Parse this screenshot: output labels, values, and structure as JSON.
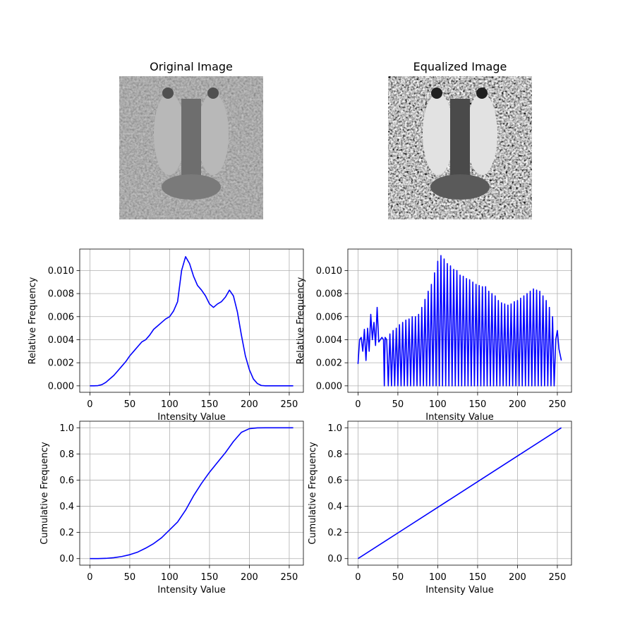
{
  "chart_data": [
    {
      "type": "image",
      "title": "Original Image"
    },
    {
      "type": "image",
      "title": "Equalized Image"
    },
    {
      "type": "line",
      "xlabel": "Intensity Value",
      "ylabel": "Relative Frequency",
      "color": "#0000ff",
      "grid": true,
      "xlim": [
        -12.75,
        267.75
      ],
      "ylim": [
        -0.00056,
        0.01186
      ],
      "xticks": [
        0,
        50,
        100,
        150,
        200,
        250
      ],
      "yticks": [
        {
          "value": 0,
          "label": "0.000"
        },
        {
          "value": 0.002,
          "label": "0.002"
        },
        {
          "value": 0.004,
          "label": "0.004"
        },
        {
          "value": 0.006,
          "label": "0.006"
        },
        {
          "value": 0.008,
          "label": "0.008"
        },
        {
          "value": 0.01,
          "label": "0.010"
        }
      ],
      "x": [
        0,
        5,
        10,
        15,
        20,
        25,
        30,
        35,
        40,
        45,
        50,
        55,
        60,
        65,
        70,
        75,
        80,
        85,
        90,
        95,
        100,
        105,
        110,
        115,
        120,
        125,
        130,
        135,
        140,
        145,
        150,
        155,
        160,
        165,
        170,
        175,
        180,
        185,
        190,
        195,
        200,
        205,
        210,
        215,
        220,
        225,
        230,
        235,
        240,
        245,
        250,
        255
      ],
      "values": [
        0,
        0,
        2e-05,
        0.0001,
        0.0003,
        0.0006,
        0.0009,
        0.0013,
        0.0017,
        0.0021,
        0.0026,
        0.003,
        0.0034,
        0.0038,
        0.004,
        0.0044,
        0.0049,
        0.0052,
        0.0055,
        0.0058,
        0.006,
        0.0065,
        0.0073,
        0.01,
        0.0112,
        0.0106,
        0.0095,
        0.0087,
        0.0083,
        0.0078,
        0.0071,
        0.0068,
        0.0071,
        0.0073,
        0.0077,
        0.0083,
        0.0078,
        0.0064,
        0.0044,
        0.0026,
        0.0014,
        0.0006,
        0.0002,
        3e-05,
        0,
        0,
        0,
        0,
        0,
        0,
        0,
        0
      ]
    },
    {
      "type": "line",
      "xlabel": "Intensity Value",
      "ylabel": "Relative Frequency",
      "color": "#0000ff",
      "grid": true,
      "xlim": [
        -12.75,
        267.75
      ],
      "ylim": [
        -0.00056,
        0.01186
      ],
      "xticks": [
        0,
        50,
        100,
        150,
        200,
        250
      ],
      "yticks": [
        {
          "value": 0,
          "label": "0.000"
        },
        {
          "value": 0.002,
          "label": "0.002"
        },
        {
          "value": 0.004,
          "label": "0.004"
        },
        {
          "value": 0.006,
          "label": "0.006"
        },
        {
          "value": 0.008,
          "label": "0.008"
        },
        {
          "value": 0.01,
          "label": "0.010"
        }
      ],
      "x": [
        0,
        2,
        4,
        6,
        8,
        10,
        12,
        14,
        16,
        18,
        20,
        22,
        24,
        26,
        28,
        30,
        32,
        33,
        34,
        36,
        38,
        40,
        42,
        44,
        46,
        48,
        50,
        52,
        54,
        56,
        58,
        60,
        62,
        64,
        66,
        68,
        70,
        72,
        74,
        76,
        78,
        80,
        82,
        84,
        86,
        88,
        90,
        92,
        94,
        96,
        98,
        100,
        102,
        104,
        106,
        108,
        110,
        112,
        114,
        116,
        118,
        120,
        122,
        124,
        126,
        128,
        130,
        132,
        134,
        136,
        138,
        140,
        142,
        144,
        146,
        148,
        150,
        152,
        154,
        156,
        158,
        160,
        162,
        164,
        166,
        168,
        170,
        172,
        174,
        176,
        178,
        180,
        182,
        184,
        186,
        188,
        190,
        192,
        194,
        196,
        198,
        200,
        202,
        204,
        206,
        208,
        210,
        212,
        214,
        216,
        218,
        220,
        222,
        224,
        226,
        228,
        230,
        232,
        234,
        236,
        238,
        240,
        242,
        244,
        246,
        248,
        250,
        252,
        255
      ],
      "values": [
        0.0019,
        0.004,
        0.0042,
        0.003,
        0.0049,
        0.0022,
        0.005,
        0.003,
        0.0062,
        0.004,
        0.0055,
        0.0035,
        0.0068,
        0.0038,
        0.004,
        0.0042,
        0.004,
        0,
        0.0042,
        0.004,
        0,
        0.0045,
        0,
        0.0048,
        0,
        0.005,
        0,
        0.0053,
        0,
        0.0055,
        0,
        0.0057,
        0,
        0.0058,
        0,
        0.006,
        0,
        0.006,
        0,
        0.0062,
        0,
        0.0068,
        0,
        0.0075,
        0,
        0.0082,
        0,
        0.0088,
        0,
        0.0098,
        0,
        0.0108,
        0,
        0.0113,
        0,
        0.011,
        0,
        0.0106,
        0,
        0.0104,
        0,
        0.0101,
        0,
        0.01,
        0,
        0.0096,
        0,
        0.0095,
        0,
        0.0093,
        0,
        0.0092,
        0,
        0.009,
        0,
        0.0088,
        0,
        0.0087,
        0,
        0.0086,
        0,
        0.0086,
        0,
        0.0082,
        0,
        0.008,
        0,
        0.0078,
        0,
        0.0074,
        0,
        0.0072,
        0,
        0.0071,
        0,
        0.007,
        0,
        0.0071,
        0,
        0.0073,
        0,
        0.0074,
        0,
        0.0076,
        0,
        0.0078,
        0,
        0.008,
        0,
        0.0082,
        0,
        0.0084,
        0,
        0.0083,
        0,
        0.0082,
        0,
        0.0078,
        0,
        0.0074,
        0,
        0.0068,
        0,
        0.006,
        0,
        0.004,
        0.0048,
        0.0032,
        0.0022
      ]
    },
    {
      "type": "line",
      "xlabel": "Intensity Value",
      "ylabel": "Cumulative Frequency",
      "color": "#0000ff",
      "grid": true,
      "xlim": [
        -12.75,
        267.75
      ],
      "ylim": [
        -0.05,
        1.05
      ],
      "xticks": [
        0,
        50,
        100,
        150,
        200,
        250
      ],
      "yticks": [
        {
          "value": 0,
          "label": "0.0"
        },
        {
          "value": 0.2,
          "label": "0.2"
        },
        {
          "value": 0.4,
          "label": "0.4"
        },
        {
          "value": 0.6,
          "label": "0.6"
        },
        {
          "value": 0.8,
          "label": "0.8"
        },
        {
          "value": 1,
          "label": "1.0"
        }
      ],
      "x": [
        0,
        10,
        20,
        30,
        40,
        50,
        60,
        70,
        80,
        90,
        100,
        110,
        120,
        130,
        140,
        150,
        160,
        170,
        180,
        190,
        200,
        210,
        220,
        230,
        240,
        250,
        255
      ],
      "values": [
        0,
        0.0001,
        0.002,
        0.007,
        0.016,
        0.03,
        0.05,
        0.08,
        0.115,
        0.16,
        0.22,
        0.28,
        0.37,
        0.48,
        0.575,
        0.66,
        0.735,
        0.81,
        0.895,
        0.965,
        0.993,
        0.999,
        1,
        1,
        1,
        1,
        1
      ]
    },
    {
      "type": "line",
      "xlabel": "Intensity Value",
      "ylabel": "Cumulative Frequency",
      "color": "#0000ff",
      "grid": true,
      "xlim": [
        -12.75,
        267.75
      ],
      "ylim": [
        -0.05,
        1.05
      ],
      "xticks": [
        0,
        50,
        100,
        150,
        200,
        250
      ],
      "yticks": [
        {
          "value": 0,
          "label": "0.0"
        },
        {
          "value": 0.2,
          "label": "0.2"
        },
        {
          "value": 0.4,
          "label": "0.4"
        },
        {
          "value": 0.6,
          "label": "0.6"
        },
        {
          "value": 0.8,
          "label": "0.8"
        },
        {
          "value": 1,
          "label": "1.0"
        }
      ],
      "x": [
        0,
        50,
        100,
        150,
        200,
        255
      ],
      "values": [
        0,
        0.196,
        0.392,
        0.588,
        0.784,
        1
      ]
    }
  ]
}
